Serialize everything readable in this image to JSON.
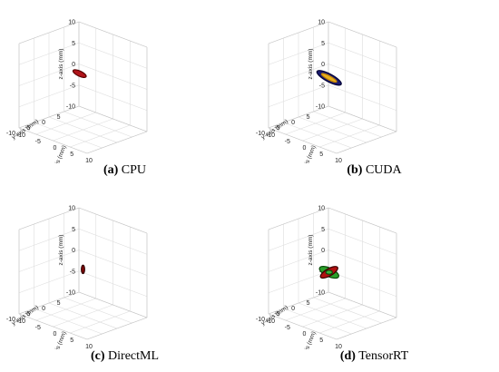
{
  "chart_data": [
    {
      "type": "scatter",
      "dims": 3,
      "label": "(a)",
      "name": "CPU",
      "xlabel": "x-axis (mm)",
      "ylabel": "y-axis (mm)",
      "zlabel": "z-axis (mm)",
      "xlim": [
        -10,
        10
      ],
      "ylim": [
        -10,
        10
      ],
      "zlim": [
        -10,
        10
      ],
      "xticks": [
        "-10",
        "-5",
        "0",
        "5",
        "10"
      ],
      "yticks": [
        "-10",
        "-5",
        "0",
        "5"
      ],
      "zticks": [
        "10",
        "5",
        "0",
        "-5",
        "-10"
      ],
      "grid": true,
      "objects": [
        {
          "shape": "ellipsoid",
          "center": [
            -1,
            0,
            3
          ],
          "rx": 2.2,
          "ry": 0.8,
          "angle": 25,
          "fill": "#b0141a",
          "edge": "#5a0000"
        }
      ]
    },
    {
      "type": "scatter",
      "dims": 3,
      "label": "(b)",
      "name": "CUDA",
      "xlabel": "x-axis (mm)",
      "ylabel": "y-axis (mm)",
      "zlabel": "z-axis (mm)",
      "xlim": [
        -10,
        10
      ],
      "ylim": [
        -10,
        10
      ],
      "zlim": [
        -10,
        10
      ],
      "xticks": [
        "-10",
        "-5",
        "0",
        "5",
        "10"
      ],
      "yticks": [
        "-10",
        "-5",
        "0",
        "5"
      ],
      "zticks": [
        "10",
        "5",
        "0",
        "-5",
        "-10"
      ],
      "grid": true,
      "objects": [
        {
          "shape": "ellipsoid",
          "center": [
            -1,
            0,
            2
          ],
          "rx": 4.2,
          "ry": 1.2,
          "angle": 28,
          "fill": "#1a1a6e",
          "edge": "#000033"
        },
        {
          "shape": "ellipsoid",
          "center": [
            -1,
            0,
            2
          ],
          "rx": 2.6,
          "ry": 0.6,
          "angle": 28,
          "fill": "#e8b020",
          "edge": "#c08000"
        }
      ]
    },
    {
      "type": "scatter",
      "dims": 3,
      "label": "(c)",
      "name": "DirectML",
      "xlabel": "x-axis (mm)",
      "ylabel": "y-axis (mm)",
      "zlabel": "z-axis (mm)",
      "xlim": [
        -10,
        10
      ],
      "ylim": [
        -10,
        10
      ],
      "zlim": [
        -10,
        10
      ],
      "xticks": [
        "-10",
        "-5",
        "0",
        "5",
        "10"
      ],
      "yticks": [
        "-10",
        "-5",
        "0",
        "5"
      ],
      "zticks": [
        "10",
        "5",
        "0",
        "-5",
        "-10"
      ],
      "grid": true,
      "objects": [
        {
          "shape": "ellipsoid",
          "center": [
            0,
            0,
            1
          ],
          "rx": 0.5,
          "ry": 1.3,
          "angle": 0,
          "fill": "#8a0a0a",
          "edge": "#2a0000"
        }
      ]
    },
    {
      "type": "scatter",
      "dims": 3,
      "label": "(d)",
      "name": "TensorRT",
      "xlabel": "x-axis (mm)",
      "ylabel": "y-axis (mm)",
      "zlabel": "z-axis (mm)",
      "xlim": [
        -10,
        10
      ],
      "ylim": [
        -10,
        10
      ],
      "zlim": [
        -10,
        10
      ],
      "xticks": [
        "-10",
        "-5",
        "0",
        "5",
        "10"
      ],
      "yticks": [
        "-10",
        "-5",
        "0",
        "5"
      ],
      "zticks": [
        "10",
        "5",
        "0",
        "-5",
        "-10"
      ],
      "grid": true,
      "objects": [
        {
          "shape": "ellipsoid",
          "center": [
            -1,
            0,
            0
          ],
          "rx": 3.2,
          "ry": 1.3,
          "angle": 25,
          "fill": "#2aa02a",
          "edge": "#0a4a0a"
        },
        {
          "shape": "ellipsoid",
          "center": [
            -1,
            0,
            0
          ],
          "rx": 3.0,
          "ry": 1.1,
          "angle": -30,
          "fill": "#b01010",
          "edge": "#3a0000"
        },
        {
          "shape": "ellipsoid",
          "center": [
            -1,
            0,
            0
          ],
          "rx": 1.0,
          "ry": 0.6,
          "angle": 0,
          "fill": "#3ab03a",
          "edge": "#0a4a0a"
        }
      ]
    }
  ]
}
